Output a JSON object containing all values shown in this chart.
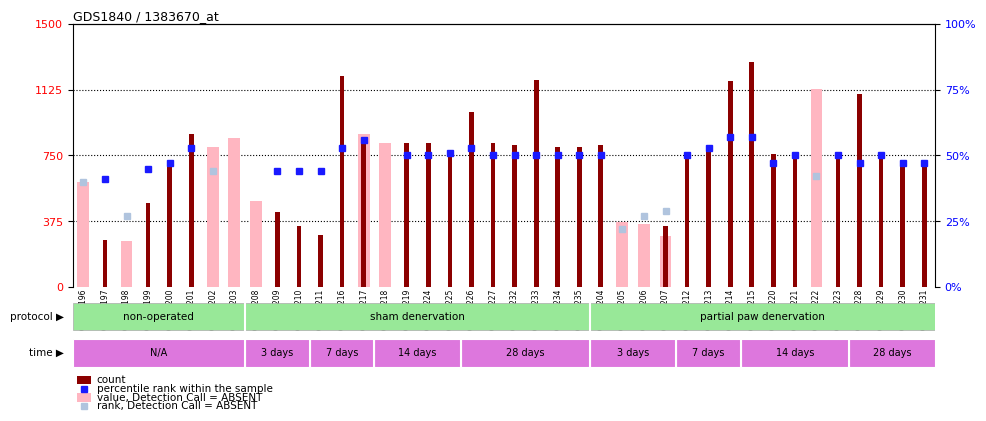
{
  "title": "GDS1840 / 1383670_at",
  "samples": [
    "GSM53196",
    "GSM53197",
    "GSM53198",
    "GSM53199",
    "GSM53200",
    "GSM53201",
    "GSM53202",
    "GSM53203",
    "GSM53208",
    "GSM53209",
    "GSM53210",
    "GSM53211",
    "GSM53216",
    "GSM53217",
    "GSM53218",
    "GSM53219",
    "GSM53224",
    "GSM53225",
    "GSM53226",
    "GSM53227",
    "GSM53232",
    "GSM53233",
    "GSM53234",
    "GSM53235",
    "GSM53204",
    "GSM53205",
    "GSM53206",
    "GSM53207",
    "GSM53212",
    "GSM53213",
    "GSM53214",
    "GSM53215",
    "GSM53220",
    "GSM53221",
    "GSM53222",
    "GSM53223",
    "GSM53228",
    "GSM53229",
    "GSM53230",
    "GSM53231"
  ],
  "count": [
    null,
    270,
    null,
    480,
    700,
    870,
    null,
    null,
    null,
    430,
    350,
    295,
    1200,
    850,
    null,
    820,
    820,
    760,
    1000,
    820,
    810,
    1180,
    800,
    800,
    810,
    null,
    null,
    350,
    750,
    800,
    1175,
    1280,
    760,
    760,
    null,
    760,
    1100,
    760,
    720,
    720
  ],
  "value_absent": [
    600,
    null,
    260,
    null,
    null,
    null,
    800,
    850,
    490,
    null,
    null,
    null,
    null,
    870,
    820,
    null,
    null,
    null,
    null,
    null,
    null,
    null,
    null,
    null,
    null,
    370,
    360,
    290,
    null,
    null,
    null,
    null,
    null,
    null,
    1130,
    null,
    null,
    null,
    null,
    null
  ],
  "rank_present": [
    null,
    41,
    null,
    45,
    47,
    53,
    null,
    null,
    null,
    44,
    44,
    44,
    53,
    56,
    null,
    50,
    50,
    51,
    53,
    50,
    50,
    50,
    50,
    50,
    50,
    null,
    null,
    null,
    50,
    53,
    57,
    57,
    47,
    50,
    null,
    50,
    47,
    50,
    47,
    47
  ],
  "rank_absent": [
    40,
    null,
    27,
    null,
    null,
    null,
    44,
    null,
    null,
    null,
    null,
    null,
    null,
    null,
    null,
    null,
    null,
    null,
    null,
    null,
    null,
    null,
    null,
    null,
    null,
    22,
    27,
    29,
    null,
    null,
    null,
    null,
    null,
    null,
    42,
    null,
    null,
    null,
    null,
    null
  ],
  "protocol_sections": [
    {
      "label": "non-operated",
      "start": 0,
      "end": 8
    },
    {
      "label": "sham denervation",
      "start": 8,
      "end": 24
    },
    {
      "label": "partial paw denervation",
      "start": 24,
      "end": 40
    }
  ],
  "time_sections": [
    {
      "label": "N/A",
      "start": 0,
      "end": 8
    },
    {
      "label": "3 days",
      "start": 8,
      "end": 11
    },
    {
      "label": "7 days",
      "start": 11,
      "end": 14
    },
    {
      "label": "14 days",
      "start": 14,
      "end": 18
    },
    {
      "label": "28 days",
      "start": 18,
      "end": 24
    },
    {
      "label": "3 days",
      "start": 24,
      "end": 28
    },
    {
      "label": "7 days",
      "start": 28,
      "end": 31
    },
    {
      "label": "14 days",
      "start": 31,
      "end": 36
    },
    {
      "label": "28 days",
      "start": 36,
      "end": 40
    }
  ],
  "ylim_left": [
    0,
    1500
  ],
  "ylim_right": [
    0,
    100
  ],
  "yticks_left": [
    0,
    375,
    750,
    1125,
    1500
  ],
  "yticks_right": [
    0,
    25,
    50,
    75,
    100
  ],
  "color_count": "#8b0000",
  "color_absent_value": "#ffb6c1",
  "color_rank_present": "#1a1aff",
  "color_rank_absent": "#b0c4de",
  "color_protocol_bg": "#98e898",
  "color_time_bg": "#dd77dd",
  "wide_bar_width": 0.55,
  "narrow_bar_width": 0.22,
  "marker_size": 5
}
